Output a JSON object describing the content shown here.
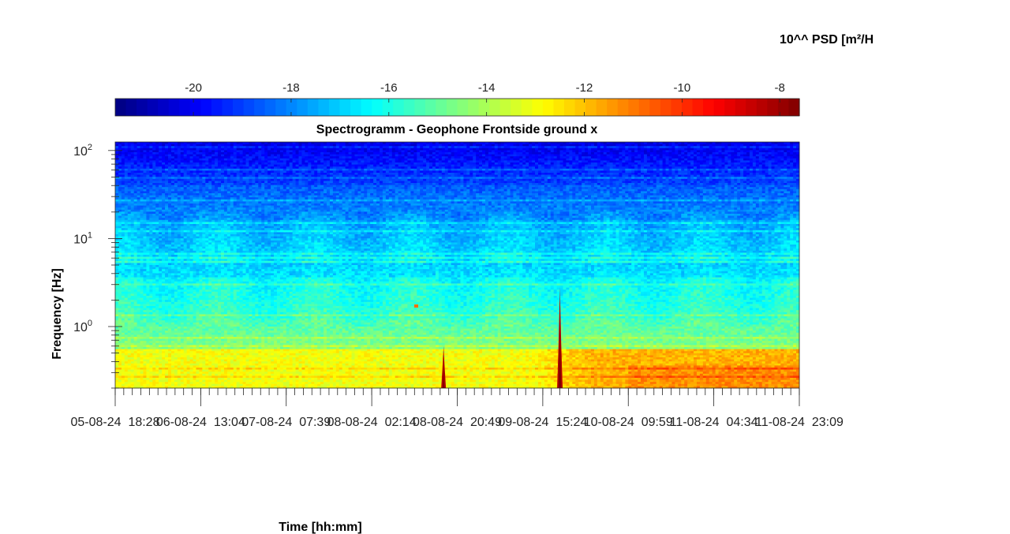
{
  "chart_data": {
    "type": "heatmap",
    "title": "Spectrogramm - Geophone Frontside ground x",
    "xlabel": "Time [hh:mm]",
    "ylabel": "Frequency [Hz]",
    "y_scale": "log",
    "ylim": [
      0.2,
      125
    ],
    "y_ticks": [
      {
        "value": 1,
        "base": "10",
        "exp": "0"
      },
      {
        "value": 10,
        "base": "10",
        "exp": "1"
      },
      {
        "value": 100,
        "base": "10",
        "exp": "2"
      }
    ],
    "x_tick_labels": [
      "05-08-24  18:28",
      "06-08-24  13:04",
      "07-08-24  07:39",
      "08-08-24  02:14",
      "08-08-24  20:49",
      "09-08-24  15:24",
      "10-08-24  09:59",
      "11-08-24  04:34",
      "11-08-24  23:09"
    ],
    "colorbar": {
      "label": "10^^ PSD [m²/H",
      "range": [
        -21.6,
        -7.6
      ],
      "ticks": [
        "-20",
        "-18",
        "-16",
        "-14",
        "-12",
        "-10",
        "-8"
      ],
      "tick_values": [
        -20,
        -18,
        -16,
        -14,
        -12,
        -10,
        -8
      ],
      "colormap": "jet",
      "colors": [
        "#00007f",
        "#0000ff",
        "#007fff",
        "#00ffff",
        "#7fff7f",
        "#ffff00",
        "#ff7f00",
        "#ff0000",
        "#7f0000"
      ]
    },
    "grid": false,
    "features": [
      {
        "time_fraction": 0.48,
        "freq_max_hz": 0.6,
        "psd_log10": -8.2,
        "description_visible": false
      },
      {
        "time_fraction": 0.65,
        "freq_max_hz": 2.8,
        "psd_log10": -7.9,
        "description_visible": false
      }
    ]
  }
}
